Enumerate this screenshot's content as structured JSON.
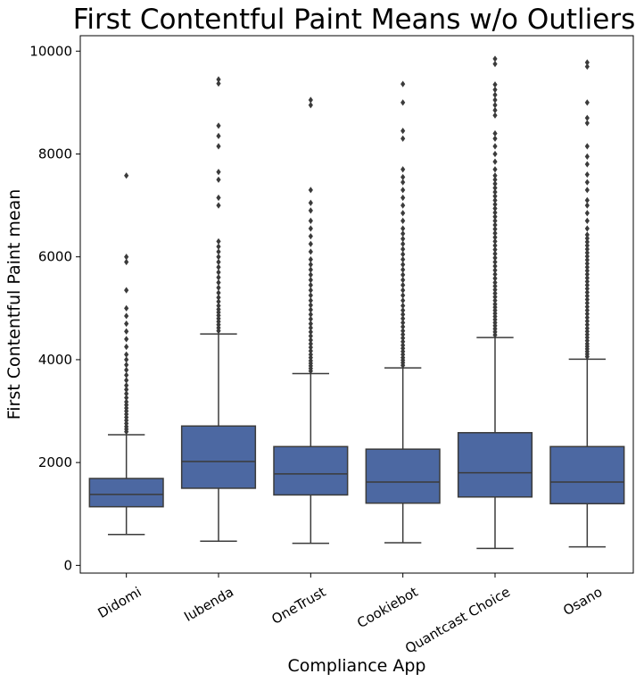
{
  "chart_data": {
    "type": "boxplot",
    "title": "First Contentful Paint Means w/o Outliers",
    "xlabel": "Compliance App",
    "ylabel": "First Contentful Paint mean",
    "ylim": [
      -150,
      10300
    ],
    "yticks": [
      0,
      2000,
      4000,
      6000,
      8000,
      10000
    ],
    "grid": false,
    "legend": "none",
    "box_color": "#4c68a2",
    "line_color": "#3b3b3b",
    "categories": [
      "Didomi",
      "Iubenda",
      "OneTrust",
      "Cookiebot",
      "Quantcast Choice",
      "Osano"
    ],
    "boxes": [
      {
        "name": "Didomi",
        "whisker_low": 600,
        "q1": 1140,
        "median": 1380,
        "q3": 1690,
        "whisker_high": 2540,
        "outliers": [
          2600,
          2650,
          2700,
          2760,
          2820,
          2880,
          2940,
          3000,
          3060,
          3120,
          3180,
          3260,
          3340,
          3420,
          3500,
          3600,
          3700,
          3800,
          3900,
          4000,
          4100,
          4250,
          4400,
          4550,
          4700,
          4850,
          5000,
          5350,
          5900,
          6000,
          7580
        ]
      },
      {
        "name": "Iubenda",
        "whisker_low": 470,
        "q1": 1500,
        "median": 2020,
        "q3": 2710,
        "whisker_high": 4500,
        "outliers": [
          4560,
          4620,
          4680,
          4740,
          4800,
          4860,
          4920,
          4980,
          5050,
          5130,
          5210,
          5300,
          5400,
          5500,
          5600,
          5700,
          5800,
          5900,
          6000,
          6100,
          6200,
          6300,
          7000,
          7150,
          7500,
          7650,
          8150,
          8350,
          8550,
          9370,
          9450
        ]
      },
      {
        "name": "OneTrust",
        "whisker_low": 430,
        "q1": 1370,
        "median": 1780,
        "q3": 2310,
        "whisker_high": 3730,
        "outliers": [
          3780,
          3830,
          3880,
          3930,
          3980,
          4040,
          4100,
          4170,
          4240,
          4310,
          4380,
          4460,
          4540,
          4620,
          4700,
          4790,
          4880,
          4970,
          5060,
          5150,
          5250,
          5350,
          5450,
          5550,
          5650,
          5750,
          5850,
          5950,
          6100,
          6250,
          6400,
          6550,
          6700,
          6900,
          7050,
          7300,
          8950,
          9050
        ]
      },
      {
        "name": "Cookiebot",
        "whisker_low": 440,
        "q1": 1210,
        "median": 1620,
        "q3": 2260,
        "whisker_high": 3840,
        "outliers": [
          3890,
          3940,
          3990,
          4040,
          4100,
          4160,
          4220,
          4280,
          4350,
          4420,
          4490,
          4560,
          4640,
          4720,
          4800,
          4880,
          4960,
          5050,
          5150,
          5250,
          5350,
          5450,
          5550,
          5650,
          5750,
          5850,
          5950,
          6050,
          6150,
          6250,
          6350,
          6450,
          6550,
          6700,
          6850,
          7000,
          7150,
          7300,
          7450,
          7550,
          7700,
          8300,
          8450,
          9000,
          9360
        ]
      },
      {
        "name": "Quantcast Choice",
        "whisker_low": 330,
        "q1": 1330,
        "median": 1800,
        "q3": 2580,
        "whisker_high": 4430,
        "outliers": [
          4480,
          4540,
          4600,
          4660,
          4720,
          4780,
          4840,
          4900,
          4960,
          5020,
          5080,
          5150,
          5220,
          5290,
          5360,
          5430,
          5500,
          5580,
          5660,
          5740,
          5820,
          5900,
          5980,
          6060,
          6140,
          6220,
          6300,
          6380,
          6460,
          6540,
          6620,
          6700,
          6780,
          6860,
          6940,
          7020,
          7100,
          7180,
          7260,
          7340,
          7420,
          7500,
          7580,
          7700,
          7850,
          8000,
          8150,
          8300,
          8400,
          8750,
          8850,
          8950,
          9050,
          9150,
          9250,
          9350,
          9750,
          9850
        ]
      },
      {
        "name": "Osano",
        "whisker_low": 360,
        "q1": 1200,
        "median": 1620,
        "q3": 2310,
        "whisker_high": 4010,
        "outliers": [
          4060,
          4110,
          4160,
          4210,
          4260,
          4310,
          4370,
          4430,
          4490,
          4550,
          4610,
          4680,
          4750,
          4820,
          4890,
          4960,
          5030,
          5100,
          5170,
          5240,
          5310,
          5380,
          5450,
          5520,
          5590,
          5660,
          5730,
          5800,
          5870,
          5940,
          6010,
          6080,
          6150,
          6220,
          6290,
          6360,
          6430,
          6550,
          6700,
          6850,
          7000,
          7100,
          7300,
          7450,
          7600,
          7800,
          7950,
          8150,
          8600,
          8700,
          9000,
          9700,
          9780
        ]
      }
    ]
  }
}
